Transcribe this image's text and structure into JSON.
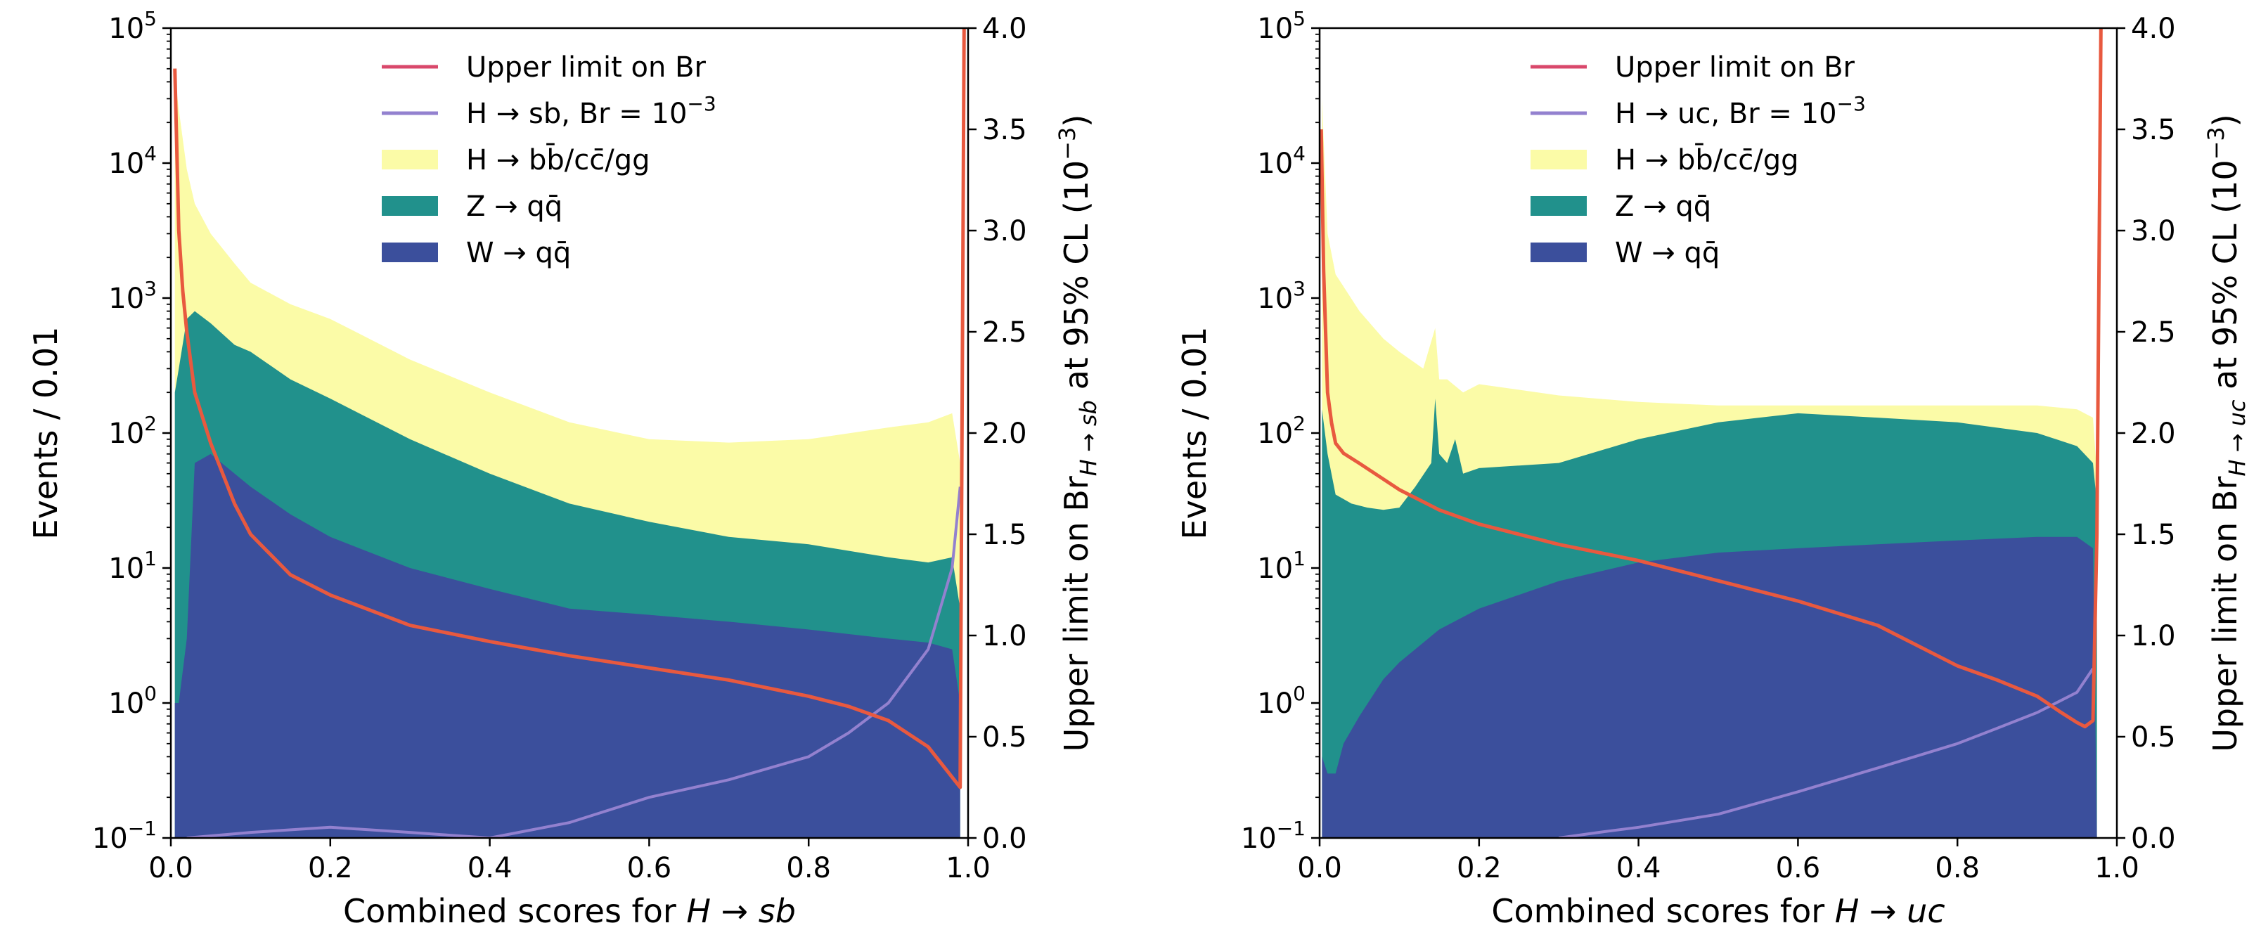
{
  "chart_data": [
    {
      "type": "area",
      "panel": "left",
      "xlabel_prefix": "Combined scores for ",
      "xlabel_math": "H → sb",
      "ylabel": "Events / 0.01",
      "y2label_prefix": "Upper limit on Br",
      "y2label_sub": "H → sb",
      "y2label_suffix": " at 95% CL (10",
      "y2label_exp": "−3",
      "y2label_close": ")",
      "xlim": [
        0.0,
        1.0
      ],
      "ylim": [
        0.1,
        100000
      ],
      "yscale": "log",
      "y2lim": [
        0.0,
        4.0
      ],
      "xticks": [
        "0.0",
        "0.2",
        "0.4",
        "0.6",
        "0.8",
        "1.0"
      ],
      "yticks": [
        {
          "base": "10",
          "exp": "−1"
        },
        {
          "base": "10",
          "exp": "0"
        },
        {
          "base": "10",
          "exp": "1"
        },
        {
          "base": "10",
          "exp": "2"
        },
        {
          "base": "10",
          "exp": "3"
        },
        {
          "base": "10",
          "exp": "4"
        },
        {
          "base": "10",
          "exp": "5"
        }
      ],
      "y2ticks": [
        "0.0",
        "0.5",
        "1.0",
        "1.5",
        "2.0",
        "2.5",
        "3.0",
        "3.5",
        "4.0"
      ],
      "legend_position": "top-center",
      "legend": [
        {
          "label": "Upper limit on Br",
          "kind": "line",
          "color": "#d9486b"
        },
        {
          "label": "H → sb, Br = 10",
          "exp": "−3",
          "kind": "line",
          "color": "#9381cf"
        },
        {
          "label": "H → bb̄/cc̄/gg",
          "kind": "patch",
          "color": "#fbfba7"
        },
        {
          "label": "Z → qq̄",
          "kind": "patch",
          "color": "#21918c"
        },
        {
          "label": "W → qq̄",
          "kind": "patch",
          "color": "#3b4f9c"
        }
      ],
      "series": [
        {
          "name": "H → bb̄/cc̄/gg",
          "kind": "stack-top",
          "color": "#fbfba7",
          "x": [
            0.005,
            0.01,
            0.02,
            0.03,
            0.05,
            0.08,
            0.1,
            0.15,
            0.2,
            0.3,
            0.4,
            0.5,
            0.6,
            0.7,
            0.8,
            0.9,
            0.95,
            0.98,
            0.99
          ],
          "y": [
            45000,
            25000,
            9000,
            5000,
            3000,
            1800,
            1300,
            900,
            700,
            350,
            200,
            120,
            90,
            85,
            90,
            110,
            120,
            140,
            60
          ]
        },
        {
          "name": "Z → qq̄",
          "kind": "stack",
          "color": "#21918c",
          "x": [
            0.005,
            0.01,
            0.02,
            0.03,
            0.05,
            0.08,
            0.1,
            0.15,
            0.2,
            0.3,
            0.4,
            0.5,
            0.6,
            0.7,
            0.8,
            0.9,
            0.95,
            0.98,
            0.99
          ],
          "y": [
            200,
            300,
            700,
            800,
            650,
            450,
            400,
            250,
            180,
            90,
            50,
            30,
            22,
            17,
            15,
            12,
            11,
            12,
            5
          ]
        },
        {
          "name": "W → qq̄",
          "kind": "stack",
          "color": "#3b4f9c",
          "x": [
            0.005,
            0.01,
            0.02,
            0.03,
            0.05,
            0.08,
            0.1,
            0.15,
            0.2,
            0.3,
            0.4,
            0.5,
            0.6,
            0.7,
            0.8,
            0.9,
            0.95,
            0.98,
            0.99
          ],
          "y": [
            1,
            1,
            3,
            60,
            70,
            50,
            40,
            25,
            17,
            10,
            7,
            5,
            4.5,
            4,
            3.5,
            3,
            2.8,
            2.5,
            1
          ]
        },
        {
          "name": "H → sb, Br = 10⁻³",
          "kind": "line",
          "axis": "left",
          "color": "#9381cf",
          "x": [
            0.02,
            0.1,
            0.2,
            0.3,
            0.4,
            0.5,
            0.6,
            0.7,
            0.8,
            0.85,
            0.9,
            0.95,
            0.98,
            0.99
          ],
          "y": [
            0.1,
            0.11,
            0.12,
            0.11,
            0.1,
            0.13,
            0.2,
            0.27,
            0.4,
            0.6,
            1.0,
            2.5,
            10,
            40
          ]
        },
        {
          "name": "Upper limit on Br",
          "kind": "line",
          "axis": "right",
          "color": "#e8593f",
          "x": [
            0.005,
            0.01,
            0.015,
            0.02,
            0.03,
            0.05,
            0.08,
            0.1,
            0.15,
            0.2,
            0.3,
            0.4,
            0.5,
            0.6,
            0.7,
            0.8,
            0.85,
            0.9,
            0.95,
            0.98,
            0.99,
            0.995
          ],
          "y": [
            3.8,
            3.0,
            2.7,
            2.5,
            2.2,
            1.95,
            1.65,
            1.5,
            1.3,
            1.2,
            1.05,
            0.97,
            0.9,
            0.84,
            0.78,
            0.7,
            0.65,
            0.58,
            0.45,
            0.3,
            0.25,
            4.0
          ]
        }
      ]
    },
    {
      "type": "area",
      "panel": "right",
      "xlabel_prefix": "Combined scores for ",
      "xlabel_math": "H → uc",
      "ylabel": "Events / 0.01",
      "y2label_prefix": "Upper limit on Br",
      "y2label_sub": "H → uc",
      "y2label_suffix": " at 95% CL (10",
      "y2label_exp": "−3",
      "y2label_close": ")",
      "xlim": [
        0.0,
        1.0
      ],
      "ylim": [
        0.1,
        100000
      ],
      "yscale": "log",
      "y2lim": [
        0.0,
        4.0
      ],
      "xticks": [
        "0.0",
        "0.2",
        "0.4",
        "0.6",
        "0.8",
        "1.0"
      ],
      "yticks": [
        {
          "base": "10",
          "exp": "−1"
        },
        {
          "base": "10",
          "exp": "0"
        },
        {
          "base": "10",
          "exp": "1"
        },
        {
          "base": "10",
          "exp": "2"
        },
        {
          "base": "10",
          "exp": "3"
        },
        {
          "base": "10",
          "exp": "4"
        },
        {
          "base": "10",
          "exp": "5"
        }
      ],
      "y2ticks": [
        "0.0",
        "0.5",
        "1.0",
        "1.5",
        "2.0",
        "2.5",
        "3.0",
        "3.5",
        "4.0"
      ],
      "legend_position": "top-center",
      "legend": [
        {
          "label": "Upper limit on Br",
          "kind": "line",
          "color": "#d9486b"
        },
        {
          "label": "H → uc, Br = 10",
          "exp": "−3",
          "kind": "line",
          "color": "#9381cf"
        },
        {
          "label": "H → bb̄/cc̄/gg",
          "kind": "patch",
          "color": "#fbfba7"
        },
        {
          "label": "Z → qq̄",
          "kind": "patch",
          "color": "#21918c"
        },
        {
          "label": "W → qq̄",
          "kind": "patch",
          "color": "#3b4f9c"
        }
      ],
      "series": [
        {
          "name": "H → bb̄/cc̄/gg",
          "kind": "stack-top",
          "color": "#fbfba7",
          "x": [
            0.003,
            0.01,
            0.02,
            0.05,
            0.08,
            0.1,
            0.13,
            0.145,
            0.15,
            0.16,
            0.18,
            0.2,
            0.3,
            0.4,
            0.5,
            0.6,
            0.7,
            0.8,
            0.9,
            0.95,
            0.97,
            0.975
          ],
          "y": [
            30000,
            3000,
            1500,
            800,
            500,
            400,
            300,
            600,
            250,
            250,
            200,
            230,
            190,
            170,
            160,
            160,
            160,
            160,
            160,
            150,
            130,
            50
          ]
        },
        {
          "name": "Z → qq̄",
          "kind": "stack",
          "color": "#21918c",
          "x": [
            0.003,
            0.01,
            0.02,
            0.04,
            0.06,
            0.08,
            0.1,
            0.12,
            0.14,
            0.145,
            0.15,
            0.16,
            0.17,
            0.18,
            0.2,
            0.3,
            0.4,
            0.5,
            0.6,
            0.7,
            0.8,
            0.9,
            0.95,
            0.97,
            0.975
          ],
          "y": [
            150,
            70,
            35,
            30,
            28,
            27,
            28,
            40,
            60,
            180,
            70,
            60,
            90,
            50,
            55,
            60,
            90,
            120,
            140,
            130,
            120,
            100,
            80,
            60,
            30
          ]
        },
        {
          "name": "W → qq̄",
          "kind": "stack",
          "color": "#3b4f9c",
          "x": [
            0.003,
            0.01,
            0.02,
            0.03,
            0.05,
            0.08,
            0.1,
            0.15,
            0.2,
            0.3,
            0.4,
            0.5,
            0.6,
            0.7,
            0.8,
            0.9,
            0.95,
            0.97,
            0.975
          ],
          "y": [
            0.4,
            0.3,
            0.3,
            0.5,
            0.8,
            1.5,
            2,
            3.5,
            5,
            8,
            11,
            13,
            14,
            15,
            16,
            17,
            17,
            14,
            0.1
          ]
        },
        {
          "name": "H → uc, Br = 10⁻³",
          "kind": "line",
          "axis": "left",
          "color": "#9381cf",
          "x": [
            0.3,
            0.35,
            0.4,
            0.5,
            0.6,
            0.7,
            0.8,
            0.85,
            0.9,
            0.95,
            0.97
          ],
          "y": [
            0.1,
            0.11,
            0.12,
            0.15,
            0.22,
            0.33,
            0.5,
            0.65,
            0.85,
            1.2,
            1.8
          ]
        },
        {
          "name": "Upper limit on Br",
          "kind": "line",
          "axis": "right",
          "color": "#e8593f",
          "x": [
            0.002,
            0.005,
            0.01,
            0.015,
            0.02,
            0.03,
            0.05,
            0.1,
            0.15,
            0.2,
            0.3,
            0.4,
            0.5,
            0.6,
            0.7,
            0.8,
            0.85,
            0.9,
            0.93,
            0.95,
            0.96,
            0.97,
            0.975,
            0.98
          ],
          "y": [
            3.5,
            2.8,
            2.2,
            2.05,
            1.95,
            1.9,
            1.85,
            1.72,
            1.62,
            1.55,
            1.45,
            1.37,
            1.27,
            1.17,
            1.05,
            0.85,
            0.78,
            0.7,
            0.62,
            0.57,
            0.55,
            0.58,
            1.5,
            4.0
          ]
        }
      ]
    }
  ]
}
